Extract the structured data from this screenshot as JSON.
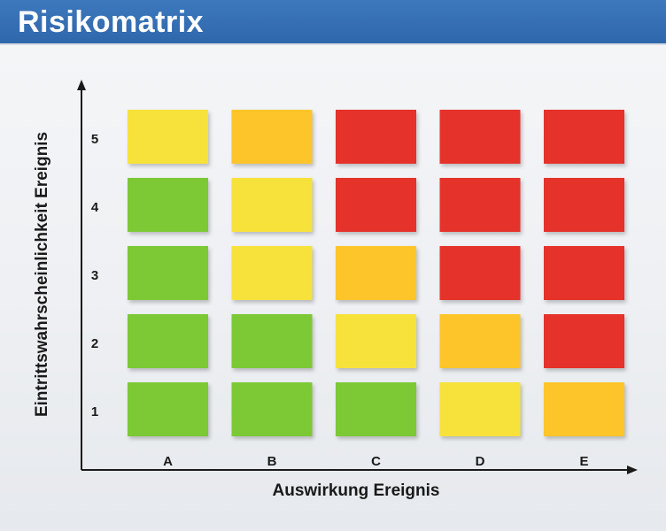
{
  "header": {
    "title": "Risikomatrix"
  },
  "chart_data": {
    "type": "heatmap",
    "title": "Risikomatrix",
    "xlabel": "Auswirkung Ereignis",
    "ylabel": "Eintrittswahrscheinlichkeit Ereignis",
    "x_categories": [
      "A",
      "B",
      "C",
      "D",
      "E"
    ],
    "y_categories": [
      "1",
      "2",
      "3",
      "4",
      "5"
    ],
    "level_colors": {
      "green": "#7cc935",
      "yellow": "#f7e23b",
      "orange": "#fdc52a",
      "red": "#e5332a"
    },
    "cells": [
      {
        "x": "A",
        "y": "5",
        "level": "yellow"
      },
      {
        "x": "B",
        "y": "5",
        "level": "orange"
      },
      {
        "x": "C",
        "y": "5",
        "level": "red"
      },
      {
        "x": "D",
        "y": "5",
        "level": "red"
      },
      {
        "x": "E",
        "y": "5",
        "level": "red"
      },
      {
        "x": "A",
        "y": "4",
        "level": "green"
      },
      {
        "x": "B",
        "y": "4",
        "level": "yellow"
      },
      {
        "x": "C",
        "y": "4",
        "level": "red"
      },
      {
        "x": "D",
        "y": "4",
        "level": "red"
      },
      {
        "x": "E",
        "y": "4",
        "level": "red"
      },
      {
        "x": "A",
        "y": "3",
        "level": "green"
      },
      {
        "x": "B",
        "y": "3",
        "level": "yellow"
      },
      {
        "x": "C",
        "y": "3",
        "level": "orange"
      },
      {
        "x": "D",
        "y": "3",
        "level": "red"
      },
      {
        "x": "E",
        "y": "3",
        "level": "red"
      },
      {
        "x": "A",
        "y": "2",
        "level": "green"
      },
      {
        "x": "B",
        "y": "2",
        "level": "green"
      },
      {
        "x": "C",
        "y": "2",
        "level": "yellow"
      },
      {
        "x": "D",
        "y": "2",
        "level": "orange"
      },
      {
        "x": "E",
        "y": "2",
        "level": "red"
      },
      {
        "x": "A",
        "y": "1",
        "level": "green"
      },
      {
        "x": "B",
        "y": "1",
        "level": "green"
      },
      {
        "x": "C",
        "y": "1",
        "level": "green"
      },
      {
        "x": "D",
        "y": "1",
        "level": "yellow"
      },
      {
        "x": "E",
        "y": "1",
        "level": "orange"
      }
    ],
    "grid": false,
    "legend": "none"
  }
}
